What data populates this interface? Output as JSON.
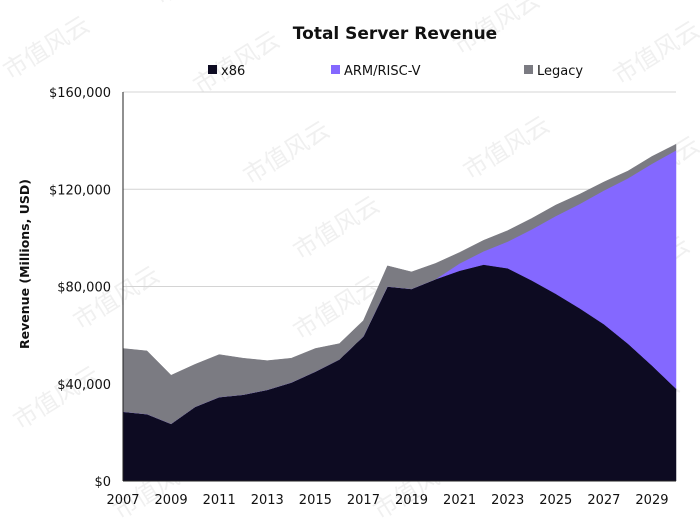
{
  "chart_data": {
    "type": "area",
    "stacked": true,
    "title": "Total Server Revenue",
    "xlabel": "",
    "ylabel": "Revenue (Millions, USD)",
    "x": [
      2007,
      2008,
      2009,
      2010,
      2011,
      2012,
      2013,
      2014,
      2015,
      2016,
      2017,
      2018,
      2019,
      2020,
      2021,
      2022,
      2023,
      2024,
      2025,
      2026,
      2027,
      2028,
      2029,
      2030
    ],
    "xlim": [
      2007,
      2030
    ],
    "ylim": [
      0,
      160000
    ],
    "x_ticks": [
      2007,
      2009,
      2011,
      2013,
      2015,
      2017,
      2019,
      2021,
      2023,
      2025,
      2027,
      2029
    ],
    "x_tick_labels": [
      "2007",
      "2009",
      "2011",
      "2013",
      "2015",
      "2017",
      "2019",
      "2021",
      "2023",
      "2025",
      "2027",
      "2029"
    ],
    "y_ticks": [
      0,
      40000,
      80000,
      120000,
      160000
    ],
    "y_tick_labels": [
      "$0",
      "$40,000",
      "$80,000",
      "$120,000",
      "$160,000"
    ],
    "legend_position": "top",
    "series": [
      {
        "name": "x86",
        "color": "#0d0b22",
        "values": [
          28500,
          27500,
          23500,
          30500,
          34500,
          35500,
          37500,
          40500,
          45000,
          50000,
          59500,
          80000,
          79000,
          83000,
          86500,
          89000,
          87500,
          82500,
          77000,
          71000,
          64500,
          56500,
          47500,
          38000
        ]
      },
      {
        "name": "ARM/RISC-V",
        "color": "#8468ff",
        "values": [
          0,
          0,
          0,
          0,
          0,
          0,
          0,
          0,
          0,
          0,
          0,
          0,
          0,
          0,
          3000,
          5500,
          11000,
          21000,
          32000,
          43000,
          55000,
          68000,
          83000,
          98000
        ]
      },
      {
        "name": "Legacy",
        "color": "#7b7b82",
        "values": [
          26000,
          26000,
          20000,
          17500,
          17500,
          15000,
          12000,
          10000,
          9500,
          6500,
          6500,
          8500,
          7000,
          6500,
          4500,
          4500,
          4500,
          4500,
          4500,
          4000,
          3500,
          3000,
          3000,
          2500
        ]
      }
    ]
  },
  "watermark": "市值风云"
}
